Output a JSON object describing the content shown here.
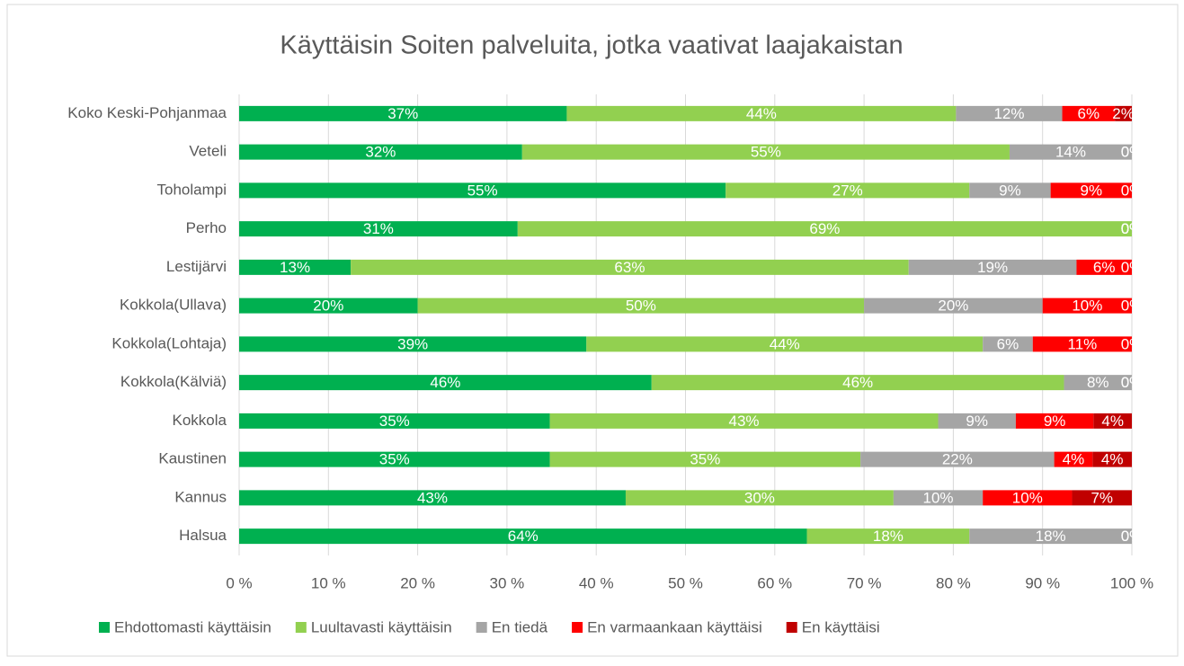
{
  "chart_data": {
    "type": "stacked_barh",
    "title": "Käyttäisin Soiten palveluita, jotka vaativat laajakaistan",
    "categories": [
      "Koko Keski-Pohjanmaa",
      "Veteli",
      "Toholampi",
      "Perho",
      "Lestijärvi",
      "Kokkola(Ullava)",
      "Kokkola(Lohtaja)",
      "Kokkola(Kälviä)",
      "Kokkola",
      "Kaustinen",
      "Kannus",
      "Halsua"
    ],
    "series": [
      {
        "name": "Ehdottomasti käyttäisin",
        "color": "#00b050",
        "values": [
          36.7,
          31.7,
          54.5,
          31.2,
          12.5,
          20,
          38.9,
          46.2,
          34.8,
          34.8,
          43.3,
          63.6
        ],
        "value_labels": [
          "37%",
          "32%",
          "55%",
          "31%",
          "13%",
          "20%",
          "39%",
          "46%",
          "35%",
          "35%",
          "43%",
          "64%"
        ]
      },
      {
        "name": "Luultavasti käyttäisin",
        "color": "#92d050",
        "values": [
          43.6,
          54.6,
          27.3,
          68.8,
          62.5,
          50,
          44.4,
          46.2,
          43.5,
          34.8,
          30,
          18.2
        ],
        "value_labels": [
          "44%",
          "55%",
          "27%",
          "69%",
          "63%",
          "50%",
          "44%",
          "46%",
          "43%",
          "35%",
          "30%",
          "18%"
        ]
      },
      {
        "name": "En tiedä",
        "color": "#a5a5a5",
        "values": [
          11.9,
          13.7,
          9.1,
          0,
          18.8,
          20,
          5.6,
          7.6,
          8.7,
          21.7,
          10,
          18.2
        ],
        "value_labels": [
          "12%",
          "14%",
          "9%",
          "0%",
          "19%",
          "20%",
          "6%",
          "8%",
          "9%",
          "22%",
          "10%",
          "18%"
        ]
      },
      {
        "name": "En varmaankaan käyttäisi",
        "color": "#ff0000",
        "values": [
          5.9,
          0,
          9.1,
          0,
          6.2,
          10,
          11.1,
          0,
          8.7,
          4.3,
          10,
          0
        ],
        "value_labels": [
          "6%",
          "0%",
          "9%",
          "0%",
          "6%",
          "10%",
          "11%",
          "0%",
          "9%",
          "4%",
          "10%",
          "0%"
        ]
      },
      {
        "name": "En käyttäisi",
        "color": "#c00000",
        "values": [
          1.9,
          0,
          0,
          0,
          0,
          0,
          0,
          0,
          4.3,
          4.4,
          6.7,
          0
        ],
        "value_labels": [
          "2%",
          "0%",
          "0%",
          "0%",
          "0%",
          "0%",
          "0%",
          "0%",
          "4%",
          "4%",
          "7%",
          "0%"
        ]
      }
    ],
    "xlim": [
      0,
      100
    ],
    "xticks": [
      {
        "value": 0,
        "label": "0 %"
      },
      {
        "value": 10,
        "label": "10 %"
      },
      {
        "value": 20,
        "label": "20 %"
      },
      {
        "value": 30,
        "label": "30 %"
      },
      {
        "value": 40,
        "label": "40 %"
      },
      {
        "value": 50,
        "label": "50 %"
      },
      {
        "value": 60,
        "label": "60 %"
      },
      {
        "value": 70,
        "label": "70 %"
      },
      {
        "value": 80,
        "label": "80 %"
      },
      {
        "value": 90,
        "label": "90 %"
      },
      {
        "value": 100,
        "label": "100 %"
      }
    ],
    "grid": true,
    "legend": "bottom"
  }
}
